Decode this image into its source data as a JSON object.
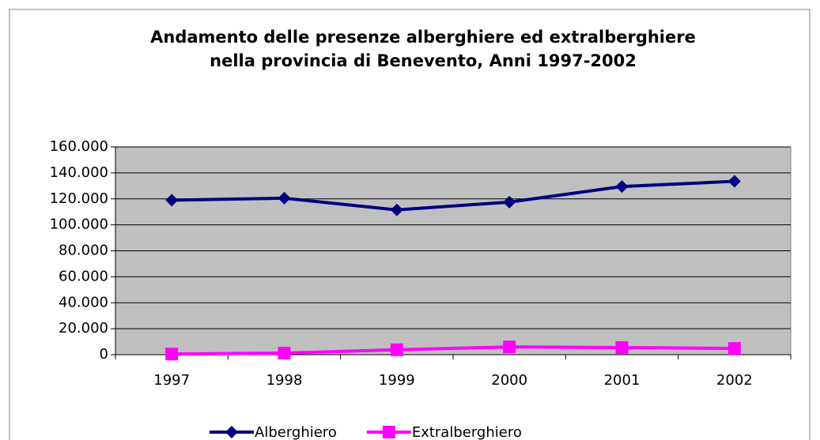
{
  "chart_data": {
    "type": "line",
    "title": [
      "Andamento delle presenze alberghiere ed extralberghiere",
      "nella provincia di Benevento, Anni 1997-2002"
    ],
    "categories": [
      "1997",
      "1998",
      "1999",
      "2000",
      "2001",
      "2002"
    ],
    "series": [
      {
        "name": "Alberghiero",
        "color": "#000080",
        "marker": "diamond",
        "values": [
          119000,
          120500,
          111500,
          117500,
          129500,
          133500
        ]
      },
      {
        "name": "Extralberghiero",
        "color": "#ff00ff",
        "marker": "square",
        "values": [
          500,
          1200,
          3800,
          6000,
          5500,
          4800
        ]
      }
    ],
    "ylim": [
      0,
      160000
    ],
    "yticks": [
      0,
      {
        "value": 20000,
        "label": "20.000"
      },
      {
        "value": 40000,
        "label": "40.000"
      },
      {
        "value": 60000,
        "label": "60.000"
      },
      {
        "value": 80000,
        "label": "80.000"
      },
      {
        "value": 100000,
        "label": "100.000"
      },
      {
        "value": 120000,
        "label": "120.000"
      },
      {
        "value": 140000,
        "label": "140.000"
      },
      {
        "value": 160000,
        "label": "160.000"
      }
    ],
    "grid": true,
    "plot_background": "#c0c0c0",
    "legend": "bottom"
  }
}
